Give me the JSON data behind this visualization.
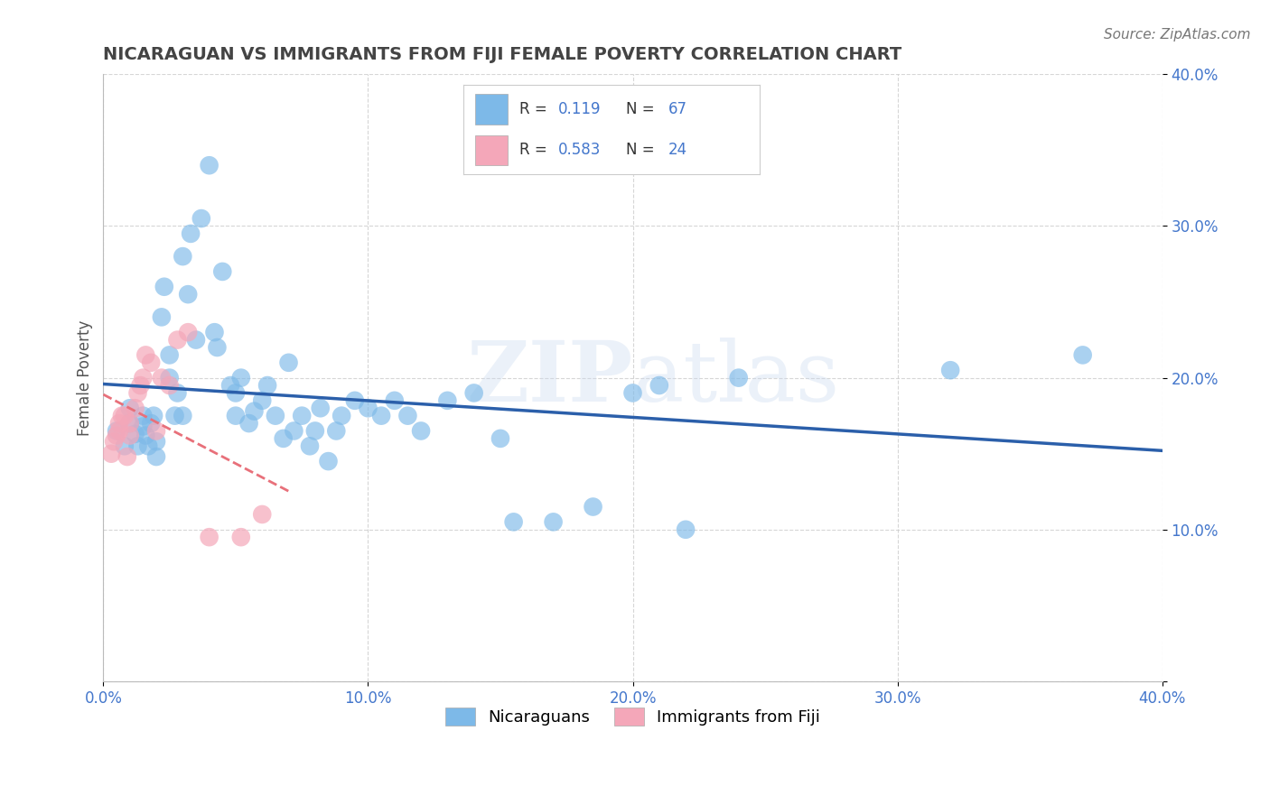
{
  "title": "NICARAGUAN VS IMMIGRANTS FROM FIJI FEMALE POVERTY CORRELATION CHART",
  "source": "Source: ZipAtlas.com",
  "ylabel": "Female Poverty",
  "xlim": [
    0.0,
    0.4
  ],
  "ylim": [
    0.0,
    0.4
  ],
  "xticks": [
    0.0,
    0.1,
    0.2,
    0.3,
    0.4
  ],
  "yticks": [
    0.0,
    0.1,
    0.2,
    0.3,
    0.4
  ],
  "xticklabels": [
    "0.0%",
    "10.0%",
    "20.0%",
    "30.0%",
    "40.0%"
  ],
  "yticklabels": [
    "",
    "10.0%",
    "20.0%",
    "30.0%",
    "40.0%"
  ],
  "legend_labels": [
    "Nicaraguans",
    "Immigrants from Fiji"
  ],
  "watermark": "ZIPatlas",
  "blue_color": "#7db9e8",
  "pink_color": "#f4a7b9",
  "blue_line_color": "#2b5faa",
  "pink_line_color": "#e8707a",
  "R_blue": 0.119,
  "N_blue": 67,
  "R_pink": 0.583,
  "N_pink": 24,
  "blue_scatter_x": [
    0.005,
    0.008,
    0.01,
    0.01,
    0.012,
    0.013,
    0.015,
    0.015,
    0.016,
    0.017,
    0.018,
    0.019,
    0.02,
    0.02,
    0.022,
    0.023,
    0.025,
    0.025,
    0.027,
    0.028,
    0.03,
    0.03,
    0.032,
    0.033,
    0.035,
    0.037,
    0.04,
    0.042,
    0.043,
    0.045,
    0.048,
    0.05,
    0.05,
    0.052,
    0.055,
    0.057,
    0.06,
    0.062,
    0.065,
    0.068,
    0.07,
    0.072,
    0.075,
    0.078,
    0.08,
    0.082,
    0.085,
    0.088,
    0.09,
    0.095,
    0.1,
    0.105,
    0.11,
    0.115,
    0.12,
    0.13,
    0.14,
    0.15,
    0.155,
    0.17,
    0.185,
    0.2,
    0.21,
    0.22,
    0.24,
    0.32,
    0.37
  ],
  "blue_scatter_y": [
    0.165,
    0.155,
    0.17,
    0.18,
    0.163,
    0.155,
    0.175,
    0.168,
    0.162,
    0.155,
    0.17,
    0.175,
    0.148,
    0.158,
    0.24,
    0.26,
    0.2,
    0.215,
    0.175,
    0.19,
    0.28,
    0.175,
    0.255,
    0.295,
    0.225,
    0.305,
    0.34,
    0.23,
    0.22,
    0.27,
    0.195,
    0.175,
    0.19,
    0.2,
    0.17,
    0.178,
    0.185,
    0.195,
    0.175,
    0.16,
    0.21,
    0.165,
    0.175,
    0.155,
    0.165,
    0.18,
    0.145,
    0.165,
    0.175,
    0.185,
    0.18,
    0.175,
    0.185,
    0.175,
    0.165,
    0.185,
    0.19,
    0.16,
    0.105,
    0.105,
    0.115,
    0.19,
    0.195,
    0.1,
    0.2,
    0.205,
    0.215
  ],
  "pink_scatter_x": [
    0.003,
    0.004,
    0.005,
    0.006,
    0.006,
    0.007,
    0.008,
    0.009,
    0.01,
    0.01,
    0.012,
    0.013,
    0.014,
    0.015,
    0.016,
    0.018,
    0.02,
    0.022,
    0.025,
    0.028,
    0.032,
    0.04,
    0.052,
    0.06
  ],
  "pink_scatter_y": [
    0.15,
    0.158,
    0.162,
    0.165,
    0.17,
    0.175,
    0.175,
    0.148,
    0.162,
    0.17,
    0.18,
    0.19,
    0.195,
    0.2,
    0.215,
    0.21,
    0.165,
    0.2,
    0.195,
    0.225,
    0.23,
    0.095,
    0.095,
    0.11
  ],
  "background_color": "#ffffff",
  "grid_color": "#cccccc",
  "title_color": "#444444",
  "label_color": "#555555",
  "tick_color": "#4477cc"
}
